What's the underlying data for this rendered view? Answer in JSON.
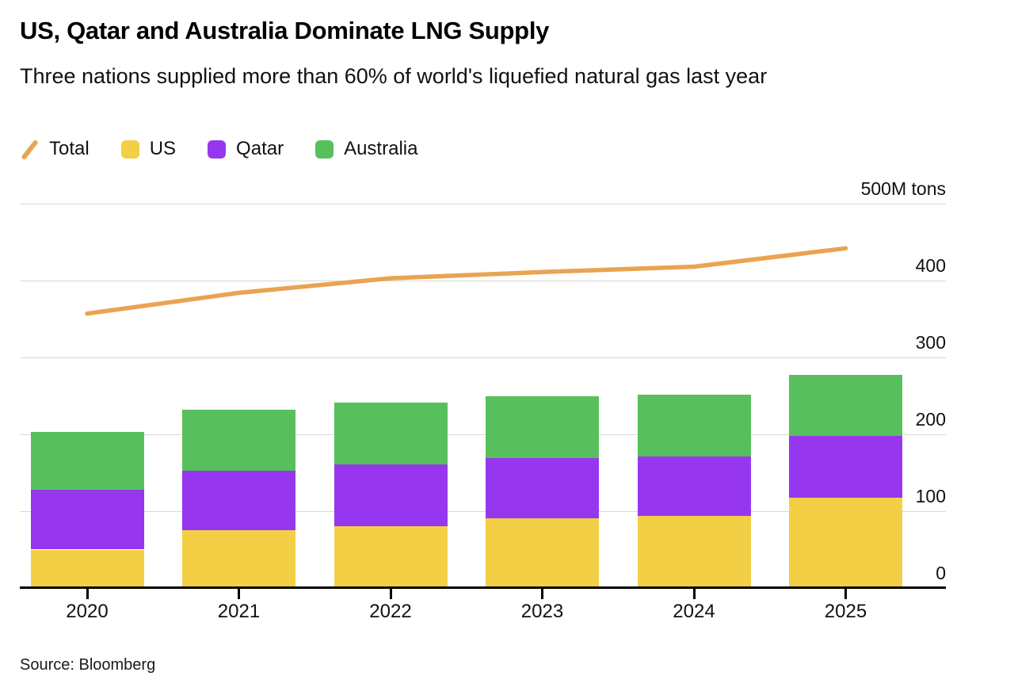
{
  "header": {
    "title": "US, Qatar and Australia Dominate LNG Supply",
    "subtitle": "Three nations supplied more than 60% of world's liquefied natural gas last year"
  },
  "legend": [
    {
      "label": "Total",
      "color": "#E9A451",
      "swatch": "line-icon"
    },
    {
      "label": "US",
      "color": "#F3CF46",
      "swatch": "square-icon"
    },
    {
      "label": "Qatar",
      "color": "#9637EF",
      "swatch": "square-icon"
    },
    {
      "label": "Australia",
      "color": "#57C05C",
      "swatch": "square-icon"
    }
  ],
  "chart_data": {
    "type": "bar",
    "subtype": "stacked-bars-with-line-overlay",
    "categories": [
      "2020",
      "2021",
      "2022",
      "2023",
      "2024",
      "2025"
    ],
    "series": [
      {
        "name": "US",
        "role": "bar-stack",
        "color": "#F3CF46",
        "values": [
          50,
          75,
          80,
          91,
          94,
          118
        ]
      },
      {
        "name": "Qatar",
        "role": "bar-stack",
        "color": "#9637EF",
        "values": [
          78,
          78,
          81,
          78,
          77,
          80
        ]
      },
      {
        "name": "Australia",
        "role": "bar-stack",
        "color": "#57C05C",
        "values": [
          75,
          79,
          80,
          80,
          81,
          79
        ]
      },
      {
        "name": "Total",
        "role": "line",
        "color": "#E9A451",
        "values": [
          357,
          384,
          403,
          411,
          418,
          442
        ]
      }
    ],
    "title": "US, Qatar and Australia Dominate LNG Supply",
    "subtitle": "Three nations supplied more than 60% of world's liquefied natural gas last year",
    "xlabel": "",
    "ylabel": "M tons",
    "ylim": [
      0,
      500
    ],
    "yticks": [
      0,
      100,
      200,
      300,
      400,
      500
    ],
    "ytick_labels": [
      "0",
      "100",
      "200",
      "300",
      "400",
      "500M tons"
    ],
    "grid": true,
    "legend_position": "top-left"
  },
  "source": "Source: Bloomberg"
}
